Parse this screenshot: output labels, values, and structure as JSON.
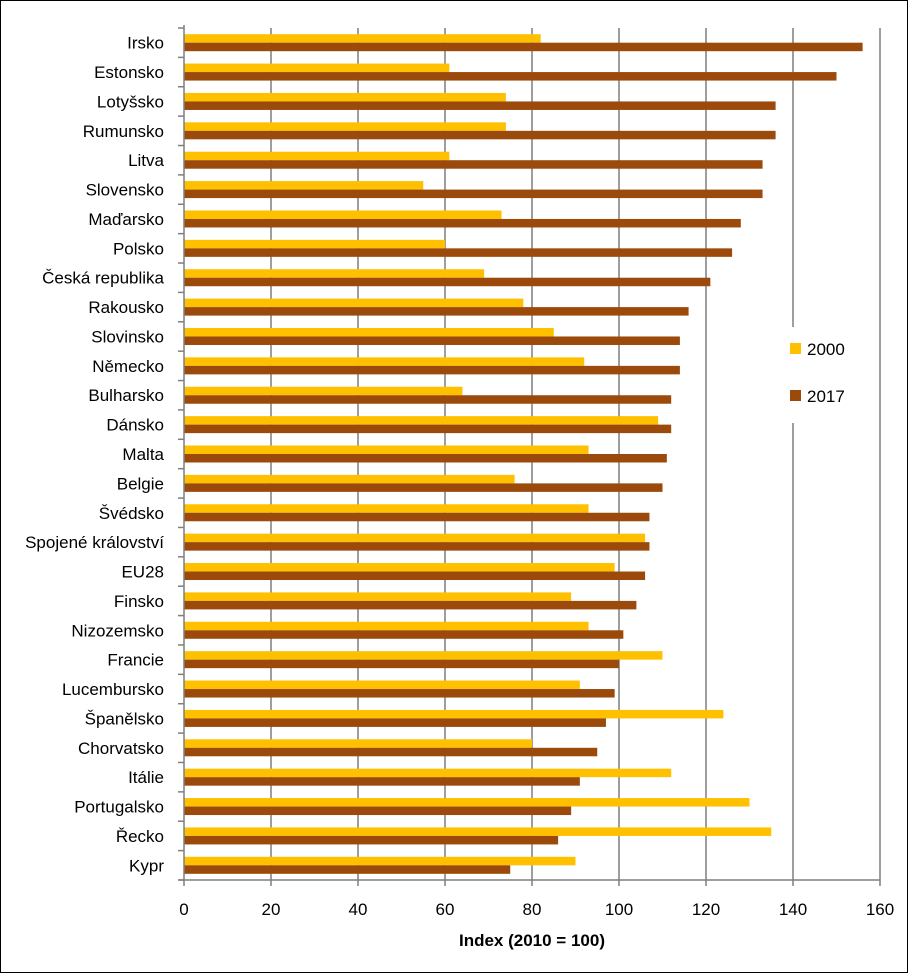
{
  "chart_data": {
    "type": "bar",
    "orientation": "horizontal",
    "categories": [
      "Irsko",
      "Estonsko",
      "Lotyšsko",
      "Rumunsko",
      "Litva",
      "Slovensko",
      "Maďarsko",
      "Polsko",
      "Česká republika",
      "Rakousko",
      "Slovinsko",
      "Německo",
      "Bulharsko",
      "Dánsko",
      "Malta",
      "Belgie",
      "Švédsko",
      "Spojené království",
      "EU28",
      "Finsko",
      "Nizozemsko",
      "Francie",
      "Lucembursko",
      "Španělsko",
      "Chorvatsko",
      "Itálie",
      "Portugalsko",
      "Řecko",
      "Kypr"
    ],
    "series": [
      {
        "name": "2000",
        "color": "#FFC000",
        "values": [
          82,
          61,
          74,
          74,
          61,
          55,
          73,
          60,
          69,
          78,
          85,
          92,
          64,
          109,
          93,
          76,
          93,
          106,
          99,
          89,
          93,
          110,
          91,
          124,
          80,
          112,
          130,
          135,
          90
        ]
      },
      {
        "name": "2017",
        "color": "#9C4A0C",
        "values": [
          156,
          150,
          136,
          136,
          133,
          133,
          128,
          126,
          121,
          116,
          114,
          114,
          112,
          112,
          111,
          110,
          107,
          107,
          106,
          104,
          101,
          100,
          99,
          97,
          95,
          91,
          89,
          86,
          75
        ]
      }
    ],
    "xlim": [
      0,
      160
    ],
    "xticks": [
      0,
      20,
      40,
      60,
      80,
      100,
      120,
      140,
      160
    ],
    "tick_labels": [
      "0",
      "20",
      "40",
      "60",
      "80",
      "100",
      "120",
      "140",
      "160"
    ],
    "xlabel": "Index (2010 = 100)",
    "grid": "vertical",
    "legend_position": "right"
  }
}
